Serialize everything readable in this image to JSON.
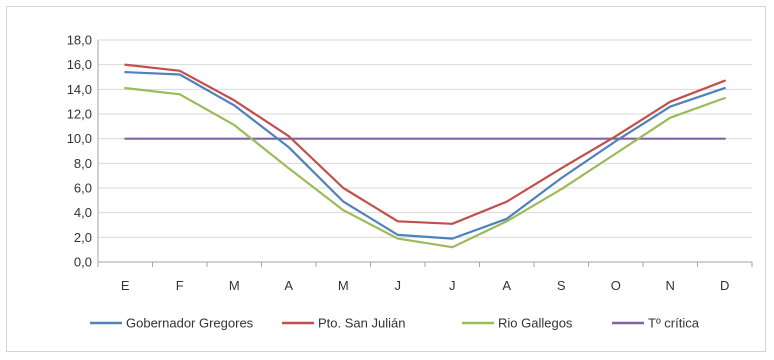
{
  "chart_data": {
    "type": "line",
    "title": "",
    "xlabel": "",
    "ylabel": "",
    "categories": [
      "E",
      "F",
      "M",
      "A",
      "M",
      "J",
      "J",
      "A",
      "S",
      "O",
      "N",
      "D"
    ],
    "ylim": [
      0,
      18
    ],
    "yticks": [
      "0,0",
      "2,0",
      "4,0",
      "6,0",
      "8,0",
      "10,0",
      "12,0",
      "14,0",
      "16,0",
      "18,0"
    ],
    "grid": true,
    "legend_position": "bottom",
    "series": [
      {
        "name": "Gobernador Gregores",
        "color": "#4f81bd",
        "values": [
          15.4,
          15.2,
          12.7,
          9.3,
          4.9,
          2.2,
          1.9,
          3.5,
          6.8,
          9.8,
          12.6,
          14.1
        ]
      },
      {
        "name": "Pto. San Julián",
        "color": "#c0504d",
        "values": [
          16.0,
          15.5,
          13.1,
          10.2,
          6.0,
          3.3,
          3.1,
          4.9,
          7.6,
          10.2,
          13.0,
          14.7
        ]
      },
      {
        "name": "Rio Gallegos",
        "color": "#9bbb59",
        "values": [
          14.1,
          13.6,
          11.1,
          7.6,
          4.2,
          1.9,
          1.2,
          3.3,
          5.9,
          8.8,
          11.7,
          13.3
        ]
      },
      {
        "name": "Tº crítica",
        "color": "#8064a2",
        "values": [
          10,
          10,
          10,
          10,
          10,
          10,
          10,
          10,
          10,
          10,
          10,
          10
        ]
      }
    ]
  }
}
